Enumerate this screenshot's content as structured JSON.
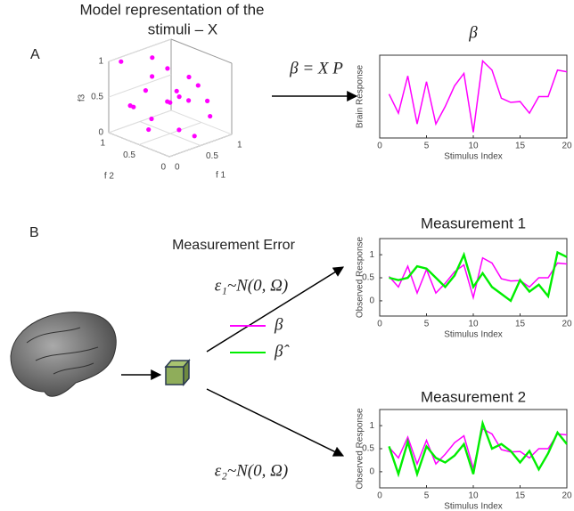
{
  "panel_a": {
    "label": "A",
    "title": [
      "Model representation of the",
      "stimuli – X"
    ],
    "equation": "β = X P"
  },
  "panel_b": {
    "label": "B",
    "heading": "Measurement Error",
    "noise_1": "ε₁~N(0, Ω)",
    "noise_2": "ε₂~N(0, Ω)",
    "legend": [
      {
        "name": "β",
        "color": "#ff00ff"
      },
      {
        "name": "β̂",
        "color": "#00ee00"
      }
    ]
  },
  "scatter": {
    "type": "scatter3d",
    "color": "#ff00ff",
    "x": [
      0.1,
      0.3,
      0.5,
      0.7,
      0.9,
      0.2,
      0.4,
      0.6,
      0.8,
      0.35,
      0.55,
      0.75,
      0.15,
      0.45,
      0.65,
      0.85,
      0.25,
      0.5,
      0.3,
      0.6
    ],
    "y": [
      0.9,
      0.7,
      0.8,
      0.6,
      0.3,
      0.5,
      0.4,
      0.9,
      0.5,
      0.2,
      0.6,
      0.1,
      0.8,
      0.3,
      0.7,
      0.4,
      0.6,
      0.1,
      0.9,
      0.3
    ],
    "z": [
      1.0,
      0.6,
      0.7,
      0.5,
      0.4,
      0.3,
      0.5,
      0.9,
      0.7,
      0.2,
      0.4,
      0.3,
      0.4,
      0.6,
      0.8,
      0.6,
      0.1,
      0.1,
      0.3,
      0.5
    ],
    "xlim": [
      0,
      1
    ],
    "ylim": [
      0,
      1
    ],
    "zlim": [
      0,
      1
    ],
    "xticks": [
      0,
      0.5,
      1
    ],
    "yticks": [
      0,
      0.5,
      1
    ],
    "zticks": [
      0,
      0.5,
      1
    ],
    "xlabel": "f 1",
    "ylabel": "f 2",
    "zlabel": "f3"
  },
  "charts": [
    {
      "type": "line",
      "title": "β",
      "xlabel": "Stimulus Index",
      "ylabel": "Brain Response",
      "x": [
        1,
        2,
        3,
        4,
        5,
        6,
        7,
        8,
        9,
        10,
        11,
        12,
        13,
        14,
        15,
        16,
        17,
        18,
        19,
        20
      ],
      "series": [
        {
          "color": "#ff00ff",
          "values": [
            0.53,
            0.3,
            0.75,
            0.17,
            0.68,
            0.17,
            0.38,
            0.63,
            0.78,
            0.07,
            0.93,
            0.82,
            0.48,
            0.43,
            0.44,
            0.3,
            0.5,
            0.5,
            0.82,
            0.8
          ]
        }
      ],
      "xlim": [
        0,
        20
      ],
      "ylim": [
        0,
        1
      ],
      "xticks": [
        0,
        5,
        10,
        15,
        20
      ]
    },
    {
      "type": "line",
      "title": "Measurement 1",
      "xlabel": "Stimulus Index",
      "ylabel": "Observed Response",
      "x": [
        1,
        2,
        3,
        4,
        5,
        6,
        7,
        8,
        9,
        10,
        11,
        12,
        13,
        14,
        15,
        16,
        17,
        18,
        19,
        20
      ],
      "series": [
        {
          "color": "#ff00ff",
          "values": [
            0.53,
            0.3,
            0.75,
            0.17,
            0.68,
            0.17,
            0.38,
            0.63,
            0.78,
            0.07,
            0.93,
            0.82,
            0.48,
            0.43,
            0.44,
            0.3,
            0.5,
            0.5,
            0.82,
            0.8
          ]
        },
        {
          "color": "#00ee00",
          "values": [
            0.5,
            0.45,
            0.5,
            0.75,
            0.7,
            0.5,
            0.3,
            0.55,
            1.0,
            0.3,
            0.6,
            0.3,
            0.15,
            0.0,
            0.45,
            0.2,
            0.35,
            0.1,
            1.05,
            0.95
          ]
        }
      ],
      "xlim": [
        0,
        20
      ],
      "ylim": [
        -0.33,
        1.35
      ],
      "xticks": [
        0,
        5,
        10,
        15,
        20
      ],
      "yticks": [
        0,
        0.5,
        1
      ]
    },
    {
      "type": "line",
      "title": "Measurement 2",
      "xlabel": "Stimulus Index",
      "ylabel": "Observed Response",
      "x": [
        1,
        2,
        3,
        4,
        5,
        6,
        7,
        8,
        9,
        10,
        11,
        12,
        13,
        14,
        15,
        16,
        17,
        18,
        19,
        20
      ],
      "series": [
        {
          "color": "#ff00ff",
          "values": [
            0.53,
            0.3,
            0.75,
            0.17,
            0.68,
            0.17,
            0.38,
            0.63,
            0.78,
            0.07,
            0.93,
            0.82,
            0.48,
            0.43,
            0.44,
            0.3,
            0.5,
            0.5,
            0.82,
            0.8
          ]
        },
        {
          "color": "#00ee00",
          "values": [
            0.55,
            -0.05,
            0.65,
            -0.05,
            0.55,
            0.3,
            0.2,
            0.35,
            0.6,
            -0.05,
            1.05,
            0.5,
            0.6,
            0.45,
            0.2,
            0.45,
            0.05,
            0.4,
            0.85,
            0.6
          ]
        }
      ],
      "xlim": [
        0,
        20
      ],
      "ylim": [
        -0.35,
        1.35
      ],
      "xticks": [
        0,
        5,
        10,
        15,
        20
      ],
      "yticks": [
        0,
        0.5,
        1
      ]
    }
  ]
}
